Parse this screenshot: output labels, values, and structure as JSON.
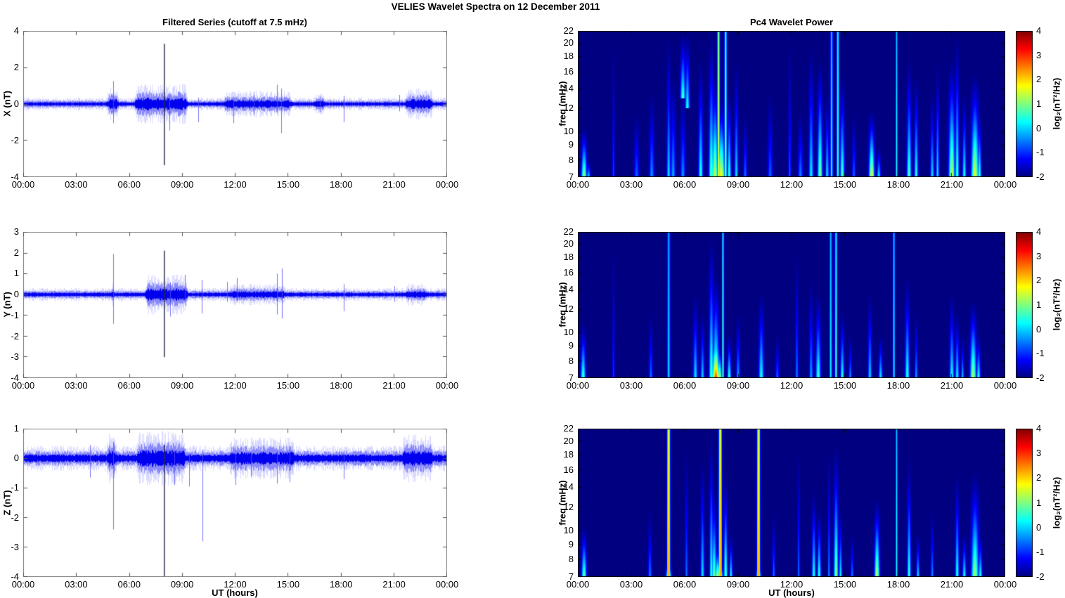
{
  "figure": {
    "title": "VELIES Wavelet Spectra on 12 December  2011",
    "left_title": "Filtered Series (cutoff at 7.5 mHz)",
    "right_title": "Pc4 Wavelet Power",
    "xlabel": "UT (hours)",
    "xtick_labels": [
      "00:00",
      "03:00",
      "06:00",
      "09:00",
      "12:00",
      "15:00",
      "18:00",
      "21:00",
      "00:00"
    ],
    "xtick_hours": [
      0,
      3,
      6,
      9,
      12,
      15,
      18,
      21,
      24
    ],
    "line_color": "#0000ee",
    "dark_spike_color": "#2b2b45",
    "background_color": "#ffffff",
    "colorbar": {
      "label": "log₂(nT²/Hz)",
      "ticks": [
        4,
        3,
        2,
        1,
        0,
        -1,
        -2
      ],
      "range": [
        -2,
        4
      ],
      "colormap": "jet"
    }
  },
  "chart_data": [
    {
      "id": "ts-x",
      "row": 0,
      "col": "ts",
      "type": "line",
      "ylabel": "X (nT)",
      "ylim": [
        -4,
        4
      ],
      "yticks": [
        4,
        2,
        0,
        -2,
        -4
      ],
      "xlim_hours": [
        0,
        24
      ],
      "noise_base": 0.12,
      "noise_bursts": [
        {
          "t0": 4.6,
          "t1": 5.5,
          "amp": 0.32
        },
        {
          "t0": 6.2,
          "t1": 9.4,
          "amp": 0.4
        },
        {
          "t0": 11.2,
          "t1": 15.3,
          "amp": 0.25
        },
        {
          "t0": 16.3,
          "t1": 17.2,
          "amp": 0.2
        },
        {
          "t0": 21.5,
          "t1": 23.3,
          "amp": 0.3
        }
      ],
      "spikes": [
        {
          "t": 5.08,
          "up": 1.25,
          "dn": -1.05
        },
        {
          "t": 7.98,
          "up": 3.3,
          "dn": -3.35,
          "dark": true
        },
        {
          "t": 8.28,
          "up": 0.4,
          "dn": -1.45
        },
        {
          "t": 9.9,
          "up": 0.35,
          "dn": -1.0
        },
        {
          "t": 11.9,
          "up": 0.4,
          "dn": -1.05
        },
        {
          "t": 13.05,
          "up": 0.5,
          "dn": -0.55
        },
        {
          "t": 14.35,
          "up": 1.05,
          "dn": -0.5
        },
        {
          "t": 14.6,
          "up": 0.85,
          "dn": -1.6
        },
        {
          "t": 16.8,
          "up": 0.4,
          "dn": -0.45
        },
        {
          "t": 18.15,
          "up": 0.45,
          "dn": -1.0
        },
        {
          "t": 21.3,
          "up": 0.5,
          "dn": -0.4
        }
      ]
    },
    {
      "id": "ts-y",
      "row": 1,
      "col": "ts",
      "type": "line",
      "ylabel": "Y (nT)",
      "ylim": [
        -4,
        3
      ],
      "yticks": [
        3,
        2,
        1,
        0,
        -1,
        -2,
        -3,
        -4
      ],
      "xlim_hours": [
        0,
        24
      ],
      "noise_base": 0.11,
      "noise_bursts": [
        {
          "t0": 4.8,
          "t1": 5.3,
          "amp": 0.2
        },
        {
          "t0": 6.8,
          "t1": 9.4,
          "amp": 0.33
        },
        {
          "t0": 11.5,
          "t1": 15.0,
          "amp": 0.18
        },
        {
          "t0": 21.5,
          "t1": 23.0,
          "amp": 0.18
        }
      ],
      "spikes": [
        {
          "t": 5.08,
          "up": 1.95,
          "dn": -1.4
        },
        {
          "t": 7.98,
          "up": 2.1,
          "dn": -3.0,
          "dark": true
        },
        {
          "t": 8.3,
          "up": 0.6,
          "dn": -1.05
        },
        {
          "t": 9.15,
          "up": 0.95,
          "dn": -0.3
        },
        {
          "t": 10.1,
          "up": 0.7,
          "dn": -0.9
        },
        {
          "t": 11.55,
          "up": 0.6,
          "dn": -0.35
        },
        {
          "t": 12.1,
          "up": 0.8,
          "dn": -0.3
        },
        {
          "t": 14.35,
          "up": 1.0,
          "dn": -0.95
        },
        {
          "t": 14.65,
          "up": 1.25,
          "dn": -1.15
        },
        {
          "t": 18.15,
          "up": 0.5,
          "dn": -0.8
        },
        {
          "t": 21.0,
          "up": 0.4,
          "dn": -0.35
        }
      ]
    },
    {
      "id": "ts-z",
      "row": 2,
      "col": "ts",
      "type": "line",
      "ylabel": "Z (nT)",
      "ylim": [
        -4,
        1
      ],
      "yticks": [
        1,
        0,
        -1,
        -2,
        -3,
        -4
      ],
      "xlim_hours": [
        0,
        24
      ],
      "noise_base": 0.15,
      "noise_bursts": [
        {
          "t0": 4.6,
          "t1": 5.4,
          "amp": 0.3
        },
        {
          "t0": 6.3,
          "t1": 9.3,
          "amp": 0.32
        },
        {
          "t0": 11.5,
          "t1": 15.5,
          "amp": 0.25
        },
        {
          "t0": 21.3,
          "t1": 23.3,
          "amp": 0.28
        }
      ],
      "spikes": [
        {
          "t": 3.8,
          "up": 0.45,
          "dn": -0.65
        },
        {
          "t": 5.08,
          "up": 0.55,
          "dn": -2.4
        },
        {
          "t": 7.98,
          "up": 0.45,
          "dn": -4.0,
          "dark": true
        },
        {
          "t": 8.55,
          "up": 0.25,
          "dn": -0.9
        },
        {
          "t": 9.4,
          "up": 0.2,
          "dn": -0.95
        },
        {
          "t": 10.15,
          "up": 0.3,
          "dn": -2.8
        },
        {
          "t": 12.0,
          "up": 0.25,
          "dn": -0.9
        },
        {
          "t": 12.9,
          "up": 0.2,
          "dn": -0.6
        },
        {
          "t": 14.35,
          "up": 0.3,
          "dn": -0.85
        },
        {
          "t": 15.1,
          "up": 0.3,
          "dn": -0.8
        },
        {
          "t": 18.15,
          "up": 0.25,
          "dn": -0.7
        }
      ]
    },
    {
      "id": "sp-x",
      "row": 0,
      "col": "sp",
      "type": "heatmap",
      "ylabel": "freq (mHz)",
      "yticks": [
        22,
        20,
        18,
        16,
        14,
        12,
        10,
        9,
        8,
        7
      ],
      "flim": [
        7,
        22
      ],
      "bg_value": -2,
      "value_range": [
        -2,
        4
      ],
      "events": [
        {
          "t": 0.35,
          "fmax": 10.5,
          "peak": 1.3,
          "w": 0.22
        },
        {
          "t": 0.6,
          "fmax": 8,
          "peak": 0.2,
          "w": 0.15
        },
        {
          "t": 2.0,
          "fmax": 22,
          "peak": -0.8,
          "w": 0.1
        },
        {
          "t": 3.3,
          "fmax": 12,
          "peak": -0.6,
          "w": 0.2
        },
        {
          "t": 4.15,
          "fmax": 14,
          "peak": -0.3,
          "w": 0.2
        },
        {
          "t": 5.1,
          "fmax": 22,
          "peak": 0.2,
          "w": 0.15
        },
        {
          "t": 5.35,
          "fmax": 16,
          "peak": -0.2,
          "w": 0.2
        },
        {
          "t": 5.9,
          "fmin": 13,
          "fmax": 22,
          "peak": 0.8,
          "w": 0.2
        },
        {
          "t": 5.9,
          "fmax": 14,
          "peak": -0.3,
          "w": 0.2
        },
        {
          "t": 6.15,
          "fmin": 12,
          "fmax": 22,
          "peak": 0.5,
          "w": 0.18
        },
        {
          "t": 6.9,
          "fmax": 18,
          "peak": 0.6,
          "w": 0.18
        },
        {
          "t": 7.5,
          "fmax": 22,
          "peak": 1.0,
          "w": 0.2
        },
        {
          "t": 7.7,
          "fmax": 16,
          "peak": 1.6,
          "w": 0.25
        },
        {
          "t": 7.9,
          "fmax": 22,
          "peak": 1.8,
          "w": 0.1,
          "kind": "line"
        },
        {
          "t": 8.05,
          "fmax": 13,
          "peak": 2.0,
          "w": 0.3
        },
        {
          "t": 8.3,
          "fmax": 22,
          "peak": 1.2,
          "w": 0.1,
          "kind": "line"
        },
        {
          "t": 8.5,
          "fmax": 14,
          "peak": 0.8,
          "w": 0.15
        },
        {
          "t": 8.9,
          "fmax": 18,
          "peak": 0.2,
          "w": 0.15
        },
        {
          "t": 9.4,
          "fmax": 12,
          "peak": -0.5,
          "w": 0.15
        },
        {
          "t": 10.8,
          "fmax": 14,
          "peak": -0.6,
          "w": 0.2
        },
        {
          "t": 11.9,
          "fmax": 22,
          "peak": -0.7,
          "w": 0.12
        },
        {
          "t": 12.5,
          "fmax": 12,
          "peak": -0.4,
          "w": 0.2
        },
        {
          "t": 13.1,
          "fmax": 20,
          "peak": 0.3,
          "w": 0.18
        },
        {
          "t": 13.6,
          "fmax": 18,
          "peak": 1.2,
          "w": 0.2
        },
        {
          "t": 14.0,
          "fmax": 14,
          "peak": 0.2,
          "w": 0.15
        },
        {
          "t": 14.25,
          "fmax": 22,
          "peak": 0.4,
          "w": 0.1,
          "kind": "line"
        },
        {
          "t": 14.6,
          "fmax": 22,
          "peak": 0.9,
          "w": 0.1,
          "kind": "line"
        },
        {
          "t": 14.85,
          "fmax": 16,
          "peak": 0.8,
          "w": 0.18
        },
        {
          "t": 15.5,
          "fmax": 12,
          "peak": -0.6,
          "w": 0.15
        },
        {
          "t": 16.5,
          "fmax": 12,
          "peak": 1.9,
          "w": 0.22
        },
        {
          "t": 16.9,
          "fmax": 9,
          "peak": 0.3,
          "w": 0.15
        },
        {
          "t": 17.9,
          "fmax": 22,
          "peak": 0.4,
          "w": 0.08,
          "kind": "line"
        },
        {
          "t": 18.6,
          "fmax": 18,
          "peak": 0.9,
          "w": 0.18
        },
        {
          "t": 19.0,
          "fmax": 16,
          "peak": 0.6,
          "w": 0.15
        },
        {
          "t": 19.9,
          "fmax": 14,
          "peak": 0.2,
          "w": 0.15
        },
        {
          "t": 20.2,
          "fmax": 18,
          "peak": 0.3,
          "w": 0.12
        },
        {
          "t": 21.0,
          "fmax": 18,
          "peak": 1.6,
          "w": 0.25
        },
        {
          "t": 21.3,
          "fmax": 22,
          "peak": 0.8,
          "w": 0.15
        },
        {
          "t": 21.7,
          "fmax": 14,
          "peak": 0.5,
          "w": 0.15
        },
        {
          "t": 22.3,
          "fmax": 16,
          "peak": 1.8,
          "w": 0.3
        },
        {
          "t": 22.55,
          "fmax": 12,
          "peak": 0.8,
          "w": 0.15
        }
      ]
    },
    {
      "id": "sp-y",
      "row": 1,
      "col": "sp",
      "type": "heatmap",
      "ylabel": "freq (mHz)",
      "yticks": [
        22,
        20,
        18,
        16,
        14,
        12,
        10,
        9,
        8,
        7
      ],
      "flim": [
        7,
        22
      ],
      "bg_value": -2,
      "value_range": [
        -2,
        4
      ],
      "events": [
        {
          "t": 0.3,
          "fmax": 11,
          "peak": 0.8,
          "w": 0.2
        },
        {
          "t": 2.0,
          "fmax": 22,
          "peak": -0.9,
          "w": 0.1
        },
        {
          "t": 4.1,
          "fmax": 12,
          "peak": -0.5,
          "w": 0.15
        },
        {
          "t": 5.1,
          "fmax": 22,
          "peak": 0.1,
          "w": 0.12,
          "kind": "line"
        },
        {
          "t": 6.6,
          "fmax": 14,
          "peak": 0.2,
          "w": 0.18
        },
        {
          "t": 7.0,
          "fmax": 12,
          "peak": 0.1,
          "w": 0.15
        },
        {
          "t": 7.5,
          "fmax": 22,
          "peak": 0.9,
          "w": 0.18
        },
        {
          "t": 7.75,
          "fmax": 16,
          "peak": 1.2,
          "w": 0.25
        },
        {
          "t": 7.75,
          "fmax": 11,
          "peak": 3.0,
          "w": 0.28
        },
        {
          "t": 7.95,
          "fmax": 9,
          "peak": 1.8,
          "w": 0.2
        },
        {
          "t": 8.15,
          "fmax": 22,
          "peak": 1.0,
          "w": 0.08,
          "kind": "line"
        },
        {
          "t": 8.5,
          "fmax": 10,
          "peak": 0.8,
          "w": 0.15
        },
        {
          "t": 9.0,
          "fmax": 12,
          "peak": -0.2,
          "w": 0.15
        },
        {
          "t": 10.3,
          "fmax": 14,
          "peak": 0.5,
          "w": 0.2
        },
        {
          "t": 11.2,
          "fmax": 10,
          "peak": -0.6,
          "w": 0.15
        },
        {
          "t": 12.3,
          "fmax": 20,
          "peak": -0.4,
          "w": 0.12
        },
        {
          "t": 13.1,
          "fmax": 16,
          "peak": -0.2,
          "w": 0.15
        },
        {
          "t": 13.5,
          "fmax": 14,
          "peak": 0.7,
          "w": 0.2
        },
        {
          "t": 14.2,
          "fmax": 22,
          "peak": 0.3,
          "w": 0.1,
          "kind": "line"
        },
        {
          "t": 14.5,
          "fmax": 22,
          "peak": 0.7,
          "w": 0.1,
          "kind": "line"
        },
        {
          "t": 14.85,
          "fmax": 12,
          "peak": 0.6,
          "w": 0.15
        },
        {
          "t": 15.3,
          "fmax": 10,
          "peak": -0.3,
          "w": 0.12
        },
        {
          "t": 16.4,
          "fmax": 14,
          "peak": 0.2,
          "w": 0.15
        },
        {
          "t": 17.0,
          "fmax": 10,
          "peak": 0.3,
          "w": 0.15
        },
        {
          "t": 17.75,
          "fmax": 22,
          "peak": 0.5,
          "w": 0.08,
          "kind": "line"
        },
        {
          "t": 18.5,
          "fmax": 16,
          "peak": 0.6,
          "w": 0.18
        },
        {
          "t": 19.0,
          "fmax": 12,
          "peak": -0.2,
          "w": 0.12
        },
        {
          "t": 21.0,
          "fmax": 14,
          "peak": 0.5,
          "w": 0.18
        },
        {
          "t": 21.3,
          "fmax": 12,
          "peak": 0.4,
          "w": 0.15
        },
        {
          "t": 21.6,
          "fmax": 10,
          "peak": 0.0,
          "w": 0.12
        },
        {
          "t": 22.2,
          "fmax": 13,
          "peak": 1.5,
          "w": 0.25
        },
        {
          "t": 22.5,
          "fmax": 10,
          "peak": 0.6,
          "w": 0.15
        }
      ]
    },
    {
      "id": "sp-z",
      "row": 2,
      "col": "sp",
      "type": "heatmap",
      "ylabel": "freq (mHz)",
      "yticks": [
        22,
        20,
        18,
        16,
        14,
        12,
        10,
        9,
        8,
        7
      ],
      "flim": [
        7,
        22
      ],
      "bg_value": -2,
      "value_range": [
        -2,
        4
      ],
      "events": [
        {
          "t": 0.35,
          "fmax": 10.5,
          "peak": 1.0,
          "w": 0.2
        },
        {
          "t": 4.05,
          "fmax": 12,
          "peak": -0.4,
          "w": 0.15
        },
        {
          "t": 5.1,
          "fmax": 22,
          "peak": 2.6,
          "w": 0.12,
          "kind": "line"
        },
        {
          "t": 5.1,
          "fmax": 8,
          "peak": 2.0,
          "w": 0.2
        },
        {
          "t": 6.1,
          "fmax": 20,
          "peak": -0.5,
          "w": 0.12
        },
        {
          "t": 7.0,
          "fmax": 18,
          "peak": 0.2,
          "w": 0.15
        },
        {
          "t": 7.5,
          "fmax": 22,
          "peak": 0.6,
          "w": 0.15
        },
        {
          "t": 7.65,
          "fmax": 14,
          "peak": 1.0,
          "w": 0.2
        },
        {
          "t": 7.85,
          "fmax": 9,
          "peak": 1.8,
          "w": 0.2
        },
        {
          "t": 8.0,
          "fmax": 22,
          "peak": 2.6,
          "w": 0.12,
          "kind": "line"
        },
        {
          "t": 8.0,
          "fmax": 8,
          "peak": 2.0,
          "w": 0.2
        },
        {
          "t": 8.3,
          "fmax": 16,
          "peak": 1.0,
          "w": 0.15
        },
        {
          "t": 8.6,
          "fmax": 10,
          "peak": 0.5,
          "w": 0.12
        },
        {
          "t": 10.15,
          "fmax": 22,
          "peak": 2.5,
          "w": 0.12,
          "kind": "line"
        },
        {
          "t": 10.15,
          "fmax": 8,
          "peak": 1.8,
          "w": 0.18
        },
        {
          "t": 11.0,
          "fmax": 12,
          "peak": -0.5,
          "w": 0.12
        },
        {
          "t": 12.4,
          "fmax": 20,
          "peak": -0.5,
          "w": 0.1
        },
        {
          "t": 13.25,
          "fmax": 14,
          "peak": 0.6,
          "w": 0.15
        },
        {
          "t": 13.55,
          "fmax": 12,
          "peak": 0.7,
          "w": 0.15
        },
        {
          "t": 14.1,
          "fmax": 20,
          "peak": -0.3,
          "w": 0.1
        },
        {
          "t": 14.5,
          "fmax": 20,
          "peak": 1.2,
          "w": 0.18
        },
        {
          "t": 14.75,
          "fmax": 12,
          "peak": 0.4,
          "w": 0.12
        },
        {
          "t": 15.4,
          "fmax": 10,
          "peak": -0.4,
          "w": 0.12
        },
        {
          "t": 16.8,
          "fmax": 13,
          "peak": 1.6,
          "w": 0.2
        },
        {
          "t": 17.9,
          "fmax": 22,
          "peak": 0.4,
          "w": 0.08,
          "kind": "line"
        },
        {
          "t": 18.6,
          "fmax": 18,
          "peak": 0.7,
          "w": 0.15
        },
        {
          "t": 19.1,
          "fmax": 10,
          "peak": 0.3,
          "w": 0.12
        },
        {
          "t": 19.9,
          "fmax": 12,
          "peak": -0.3,
          "w": 0.12
        },
        {
          "t": 21.3,
          "fmax": 16,
          "peak": 0.6,
          "w": 0.15
        },
        {
          "t": 21.7,
          "fmax": 10,
          "peak": 0.5,
          "w": 0.15
        },
        {
          "t": 22.3,
          "fmax": 16,
          "peak": 1.3,
          "w": 0.3
        },
        {
          "t": 22.6,
          "fmax": 10,
          "peak": 0.6,
          "w": 0.15
        }
      ]
    }
  ]
}
